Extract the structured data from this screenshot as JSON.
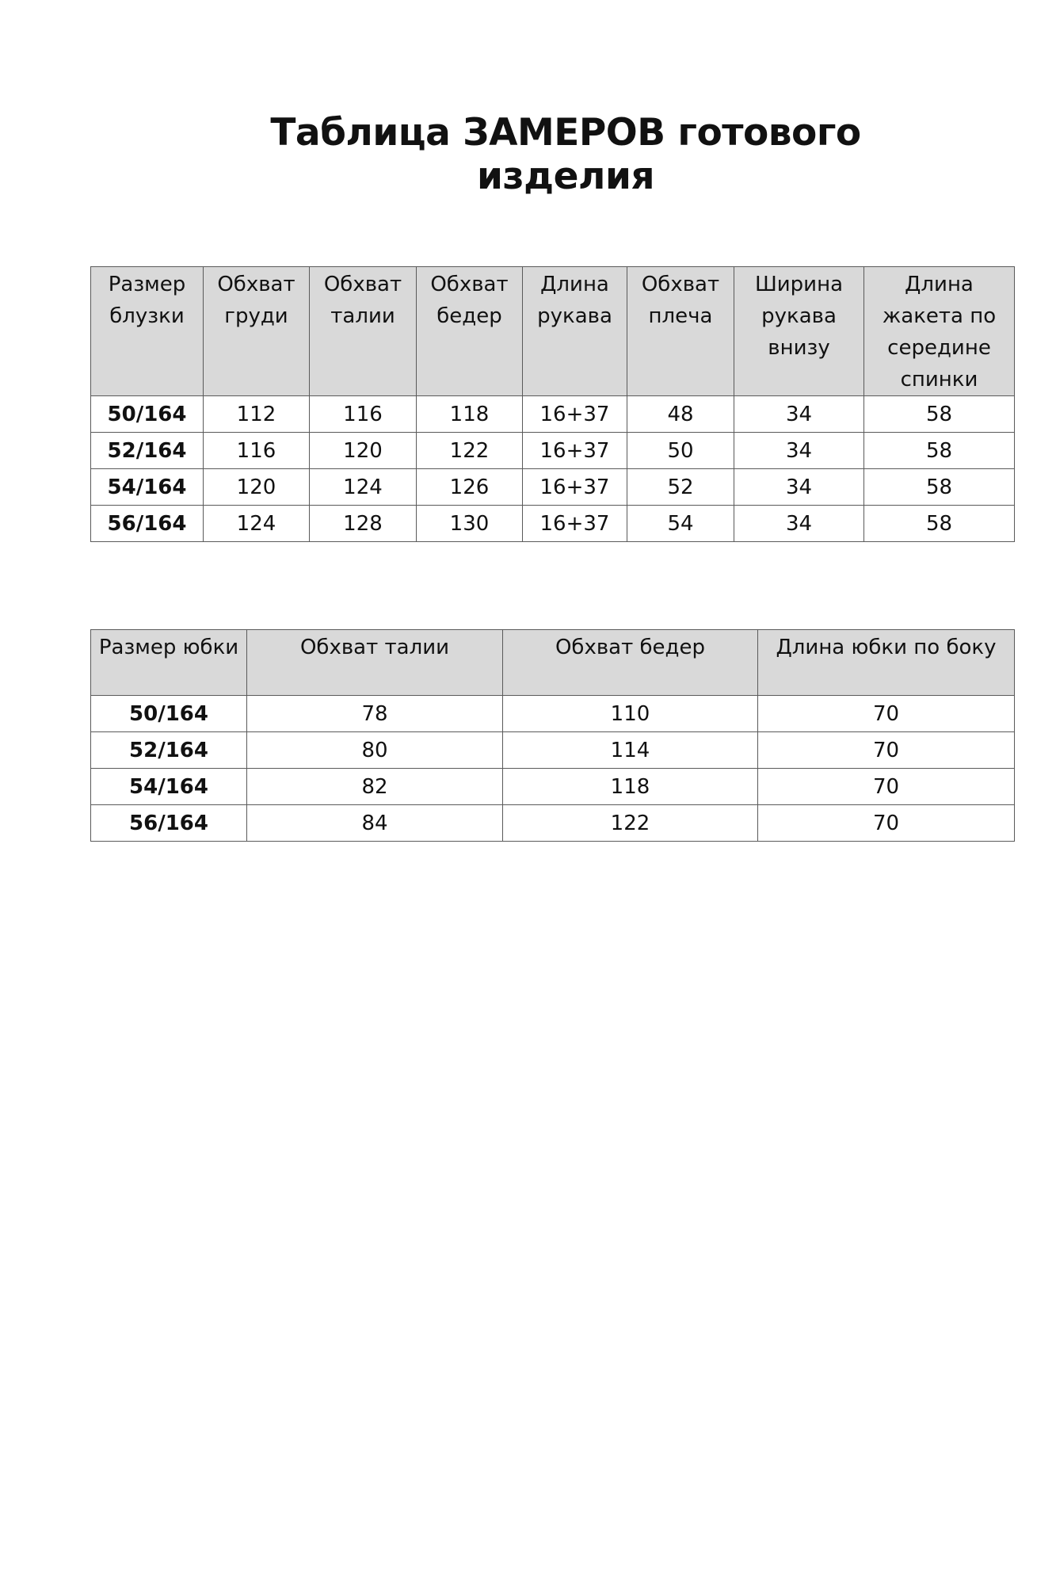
{
  "title": "Таблица ЗАМЕРОВ готового изделия",
  "blouse_table": {
    "headers": [
      "Размер блузки",
      "Обхват груди",
      "Обхват талии",
      "Обхват бедер",
      "Длина рукава",
      "Обхват плеча",
      "Ширина рукава внизу",
      "Длина жакета по середине спинки"
    ],
    "rows": [
      [
        "50/164",
        "112",
        "116",
        "118",
        "16+37",
        "48",
        "34",
        "58"
      ],
      [
        "52/164",
        "116",
        "120",
        "122",
        "16+37",
        "50",
        "34",
        "58"
      ],
      [
        "54/164",
        "120",
        "124",
        "126",
        "16+37",
        "52",
        "34",
        "58"
      ],
      [
        "56/164",
        "124",
        "128",
        "130",
        "16+37",
        "54",
        "34",
        "58"
      ]
    ]
  },
  "skirt_table": {
    "headers": [
      "Размер юбки",
      "Обхват талии",
      "Обхват бедер",
      "Длина юбки по боку"
    ],
    "rows": [
      [
        "50/164",
        "78",
        "110",
        "70"
      ],
      [
        "52/164",
        "80",
        "114",
        "70"
      ],
      [
        "54/164",
        "82",
        "118",
        "70"
      ],
      [
        "56/164",
        "84",
        "122",
        "70"
      ]
    ]
  },
  "colors": {
    "header_bg": "#d9d9d9",
    "border": "#5a5a5a"
  }
}
